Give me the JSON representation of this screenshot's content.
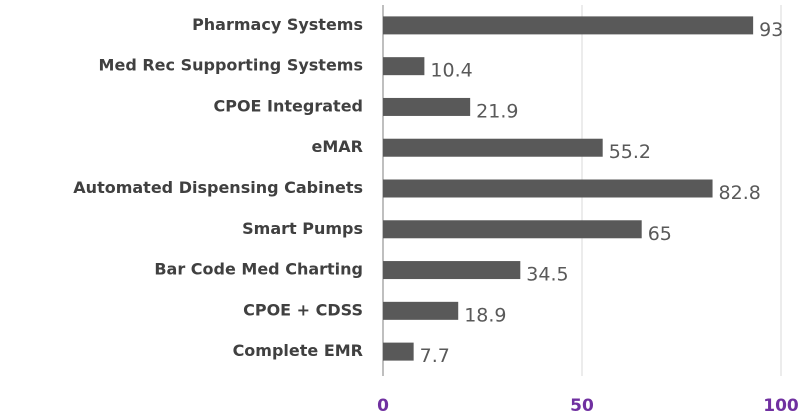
{
  "chart_data": {
    "type": "bar",
    "orientation": "horizontal",
    "categories": [
      "Pharmacy Systems",
      "Med Rec Supporting Systems",
      "CPOE Integrated",
      "eMAR",
      "Automated Dispensing Cabinets",
      "Smart Pumps",
      "Bar Code Med Charting",
      "CPOE + CDSS",
      "Complete EMR"
    ],
    "values": [
      93,
      10.4,
      21.9,
      55.2,
      82.8,
      65,
      34.5,
      18.9,
      7.7
    ],
    "color": "#595959",
    "xlim": [
      0,
      100
    ],
    "xticks": [
      0,
      50,
      100
    ],
    "grid": true
  }
}
